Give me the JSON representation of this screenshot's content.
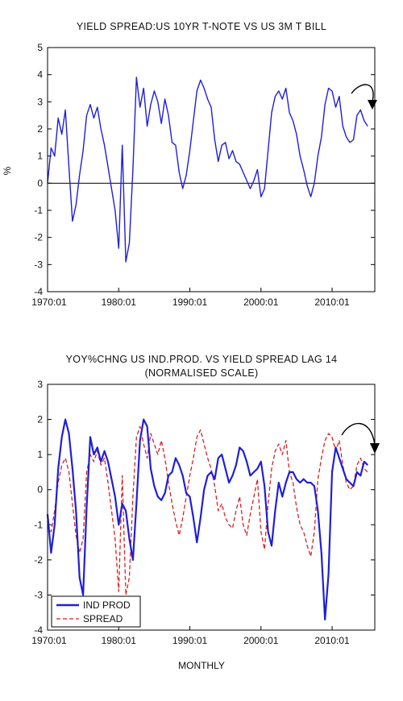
{
  "chart_data": [
    {
      "type": "line",
      "title": "YIELD SPREAD:US 10YR T-NOTE VS US 3M T BILL",
      "ylabel": "%",
      "xlabel": "",
      "ylim": [
        -4,
        5
      ],
      "y_ticks": [
        "5",
        "4",
        "3",
        "2",
        "1",
        "0",
        "-1",
        "-2",
        "-3",
        "-4"
      ],
      "x_ticks": [
        "1970:01",
        "1980:01",
        "1990:01",
        "2000:01",
        "2010:01"
      ],
      "zero_line": true,
      "grid": false,
      "colors": {
        "series": "#1f1fd8",
        "axis": "#000000",
        "annotation": "#000000"
      },
      "annotation": "curved-arrow-down",
      "series": [
        {
          "color": "#1f1fd8",
          "x": [
            1970.0,
            1970.5,
            1971.0,
            1971.5,
            1972.0,
            1972.5,
            1973.0,
            1973.5,
            1974.0,
            1974.5,
            1975.0,
            1975.5,
            1976.0,
            1976.5,
            1977.0,
            1977.5,
            1978.0,
            1978.5,
            1979.0,
            1979.5,
            1980.0,
            1980.5,
            1981.0,
            1981.5,
            1982.0,
            1982.5,
            1983.0,
            1983.5,
            1984.0,
            1984.5,
            1985.0,
            1985.5,
            1986.0,
            1986.5,
            1987.0,
            1987.5,
            1988.0,
            1988.5,
            1989.0,
            1989.5,
            1990.0,
            1990.5,
            1991.0,
            1991.5,
            1992.0,
            1992.5,
            1993.0,
            1993.5,
            1994.0,
            1994.5,
            1995.0,
            1995.5,
            1996.0,
            1996.5,
            1997.0,
            1997.5,
            1998.0,
            1998.5,
            1999.0,
            1999.5,
            2000.0,
            2000.5,
            2001.0,
            2001.5,
            2002.0,
            2002.5,
            2003.0,
            2003.5,
            2004.0,
            2004.5,
            2005.0,
            2005.5,
            2006.0,
            2006.5,
            2007.0,
            2007.5,
            2008.0,
            2008.5,
            2009.0,
            2009.5,
            2010.0,
            2010.5,
            2011.0,
            2011.5,
            2012.0,
            2012.5,
            2013.0,
            2013.5,
            2014.0,
            2014.5,
            2015.0
          ],
          "y": [
            0.0,
            1.3,
            1.0,
            2.4,
            1.8,
            2.7,
            0.6,
            -1.4,
            -0.8,
            0.3,
            1.2,
            2.5,
            2.9,
            2.4,
            2.8,
            2.0,
            1.4,
            0.6,
            -0.2,
            -1.0,
            -2.4,
            1.4,
            -2.9,
            -2.2,
            0.5,
            3.9,
            2.8,
            3.5,
            2.1,
            2.9,
            3.4,
            3.0,
            2.2,
            3.1,
            2.5,
            1.5,
            1.4,
            0.4,
            -0.2,
            0.3,
            1.2,
            2.3,
            3.4,
            3.8,
            3.5,
            3.1,
            2.8,
            1.6,
            0.8,
            1.4,
            1.5,
            0.9,
            1.2,
            0.8,
            0.7,
            0.4,
            0.1,
            -0.2,
            0.1,
            0.5,
            -0.5,
            -0.2,
            1.2,
            2.6,
            3.2,
            3.4,
            3.1,
            3.5,
            2.6,
            2.3,
            1.8,
            1.0,
            0.5,
            -0.1,
            -0.5,
            0.0,
            1.0,
            1.7,
            2.9,
            3.5,
            3.4,
            2.8,
            3.2,
            2.1,
            1.7,
            1.5,
            1.6,
            2.5,
            2.7,
            2.3,
            2.1
          ]
        }
      ]
    },
    {
      "type": "line",
      "title": "YOY%CHNG US IND.PROD. VS YIELD SPREAD LAG 14",
      "subtitle": "(NORMALISED SCALE)",
      "xlabel": "MONTHLY",
      "ylabel": "",
      "ylim": [
        -4,
        3
      ],
      "y_ticks": [
        "3",
        "2",
        "1",
        "0",
        "-1",
        "-2",
        "-3",
        "-4"
      ],
      "x_ticks": [
        "1970:01",
        "1980:01",
        "1990:01",
        "2000:01",
        "2010:01"
      ],
      "grid": false,
      "legend": "bottom-left",
      "colors": {
        "ind_prod": "#1f1fd8",
        "spread": "#d82020",
        "axis": "#000000",
        "annotation": "#000000"
      },
      "annotation": "curved-arrow-down",
      "series": [
        {
          "name": "IND PROD",
          "color": "#1f1fd8",
          "style": "solid",
          "x": [
            1970.0,
            1970.5,
            1971.0,
            1971.5,
            1972.0,
            1972.5,
            1973.0,
            1973.5,
            1974.0,
            1974.5,
            1975.0,
            1975.5,
            1976.0,
            1976.5,
            1977.0,
            1977.5,
            1978.0,
            1978.5,
            1979.0,
            1979.5,
            1980.0,
            1980.5,
            1981.0,
            1981.5,
            1982.0,
            1982.5,
            1983.0,
            1983.5,
            1984.0,
            1984.5,
            1985.0,
            1985.5,
            1986.0,
            1986.5,
            1987.0,
            1987.5,
            1988.0,
            1988.5,
            1989.0,
            1989.5,
            1990.0,
            1990.5,
            1991.0,
            1991.5,
            1992.0,
            1992.5,
            1993.0,
            1993.5,
            1994.0,
            1994.5,
            1995.0,
            1995.5,
            1996.0,
            1996.5,
            1997.0,
            1997.5,
            1998.0,
            1998.5,
            1999.0,
            1999.5,
            2000.0,
            2000.5,
            2001.0,
            2001.5,
            2002.0,
            2002.5,
            2003.0,
            2003.5,
            2004.0,
            2004.5,
            2005.0,
            2005.5,
            2006.0,
            2006.5,
            2007.0,
            2007.5,
            2008.0,
            2008.5,
            2009.0,
            2009.5,
            2010.0,
            2010.5,
            2011.0,
            2011.5,
            2012.0,
            2012.5,
            2013.0,
            2013.5,
            2014.0,
            2014.5,
            2015.0
          ],
          "y": [
            -0.7,
            -1.8,
            -1.0,
            0.6,
            1.5,
            2.0,
            1.6,
            0.6,
            -0.6,
            -2.5,
            -3.0,
            -0.5,
            1.5,
            1.0,
            1.2,
            0.8,
            1.1,
            0.8,
            0.3,
            -0.2,
            -1.0,
            -0.4,
            -0.6,
            -1.4,
            -2.0,
            -0.4,
            1.4,
            2.0,
            1.8,
            0.6,
            0.1,
            -0.2,
            -0.3,
            -0.1,
            0.4,
            0.5,
            0.9,
            0.7,
            0.4,
            -0.1,
            -0.2,
            -0.8,
            -1.5,
            -0.8,
            0.0,
            0.4,
            0.5,
            0.3,
            0.9,
            1.0,
            0.6,
            0.2,
            0.4,
            0.7,
            1.2,
            1.1,
            0.8,
            0.4,
            0.5,
            0.6,
            0.8,
            0.1,
            -1.2,
            -1.6,
            -0.6,
            0.2,
            -0.2,
            0.2,
            0.5,
            0.5,
            0.3,
            0.2,
            0.3,
            0.2,
            0.2,
            0.1,
            -0.6,
            -1.8,
            -3.7,
            -2.4,
            0.5,
            1.2,
            0.9,
            0.6,
            0.3,
            0.2,
            0.1,
            0.5,
            0.4,
            0.8,
            0.7
          ]
        },
        {
          "name": "SPREAD",
          "color": "#d82020",
          "style": "dashed",
          "x": [
            1970.0,
            1970.5,
            1971.0,
            1971.5,
            1972.0,
            1972.5,
            1973.0,
            1973.5,
            1974.0,
            1974.5,
            1975.0,
            1975.5,
            1976.0,
            1976.5,
            1977.0,
            1977.5,
            1978.0,
            1978.5,
            1979.0,
            1979.5,
            1980.0,
            1980.5,
            1981.0,
            1981.5,
            1982.0,
            1982.5,
            1983.0,
            1983.5,
            1984.0,
            1984.5,
            1985.0,
            1985.5,
            1986.0,
            1986.5,
            1987.0,
            1987.5,
            1988.0,
            1988.5,
            1989.0,
            1989.5,
            1990.0,
            1990.5,
            1991.0,
            1991.5,
            1992.0,
            1992.5,
            1993.0,
            1993.5,
            1994.0,
            1994.5,
            1995.0,
            1995.5,
            1996.0,
            1996.5,
            1997.0,
            1997.5,
            1998.0,
            1998.5,
            1999.0,
            1999.5,
            2000.0,
            2000.5,
            2001.0,
            2001.5,
            2002.0,
            2002.5,
            2003.0,
            2003.5,
            2004.0,
            2004.5,
            2005.0,
            2005.5,
            2006.0,
            2006.5,
            2007.0,
            2007.5,
            2008.0,
            2008.5,
            2009.0,
            2009.5,
            2010.0,
            2010.5,
            2011.0,
            2011.5,
            2012.0,
            2012.5,
            2013.0,
            2013.5,
            2014.0,
            2014.5,
            2015.0
          ],
          "y": [
            -1.0,
            -1.2,
            -0.6,
            0.2,
            0.7,
            0.9,
            0.5,
            -0.4,
            -1.3,
            -1.8,
            -1.4,
            0.5,
            1.0,
            0.8,
            1.1,
            0.7,
            0.9,
            0.2,
            -0.6,
            -1.4,
            -2.9,
            0.4,
            -3.0,
            -2.5,
            -0.2,
            1.5,
            1.8,
            1.3,
            0.9,
            1.6,
            1.3,
            1.0,
            1.4,
            0.9,
            0.2,
            -0.4,
            -0.9,
            -1.3,
            -0.8,
            -0.2,
            0.4,
            0.9,
            1.5,
            1.7,
            1.3,
            0.9,
            0.6,
            0.1,
            -0.6,
            -0.4,
            -0.8,
            -1.0,
            -1.1,
            -0.6,
            -0.2,
            -1.0,
            -1.3,
            -0.7,
            -0.2,
            0.3,
            -1.2,
            -1.7,
            -0.4,
            0.6,
            1.1,
            1.3,
            1.0,
            1.4,
            0.5,
            0.2,
            -0.5,
            -1.0,
            -1.2,
            -1.6,
            -1.9,
            -1.2,
            0.3,
            0.9,
            1.4,
            1.6,
            1.5,
            1.1,
            1.4,
            0.7,
            0.2,
            0.0,
            0.1,
            0.7,
            0.9,
            0.6,
            0.5
          ]
        }
      ]
    }
  ]
}
